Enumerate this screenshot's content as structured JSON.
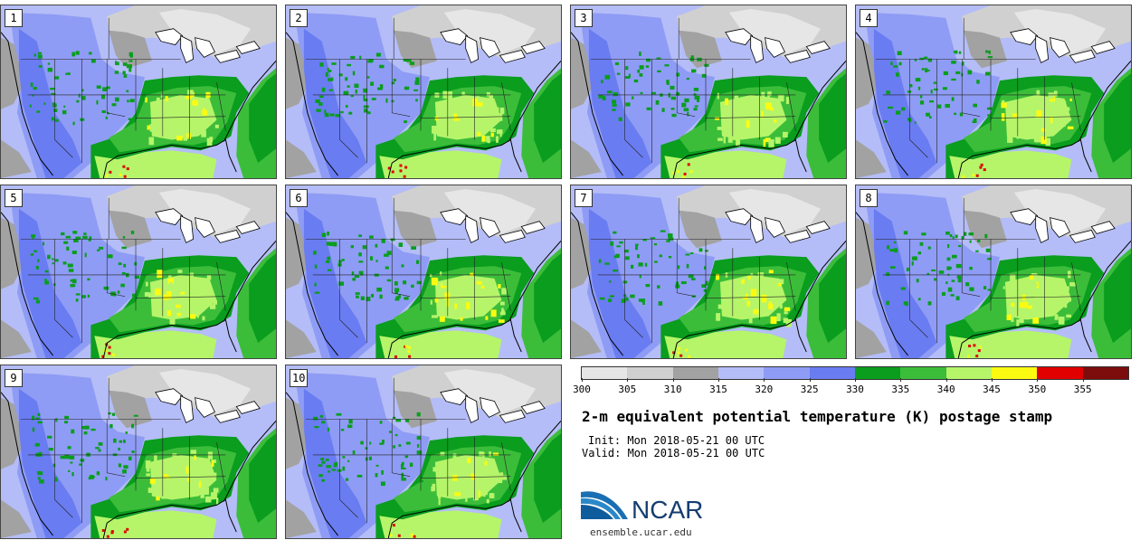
{
  "colorbar": {
    "colors": [
      "#e6e6e6",
      "#d0d0d0",
      "#a2a2a2",
      "#b4bdf7",
      "#8f9cf5",
      "#6a7cf1",
      "#0a9d1e",
      "#3cbd3a",
      "#b6f56a",
      "#fbfb12",
      "#e00000",
      "#7d0c0c"
    ],
    "labels": [
      "300",
      "305",
      "310",
      "315",
      "320",
      "325",
      "330",
      "335",
      "340",
      "345",
      "350",
      "355"
    ]
  },
  "title": "2-m equivalent potential temperature (K) postage stamp",
  "init": "Init: Mon 2018-05-21 00 UTC",
  "valid": "Valid: Mon 2018-05-21 00 UTC",
  "logo": {
    "text": "NCAR",
    "url": "ensemble.ucar.edu"
  },
  "members": [
    "1",
    "2",
    "3",
    "4",
    "5",
    "6",
    "7",
    "8",
    "9",
    "10"
  ]
}
